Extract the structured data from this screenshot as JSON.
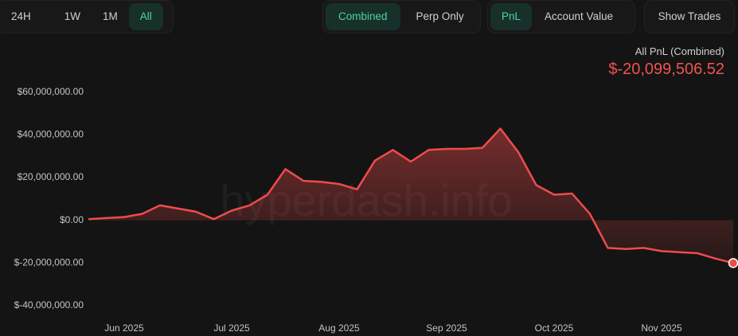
{
  "toolbar": {
    "timeframes": [
      "24H",
      "1W",
      "1M",
      "All"
    ],
    "modes": [
      "Combined",
      "Perp Only"
    ],
    "views": [
      "PnL",
      "Account Value"
    ],
    "show_trades": "Show Trades"
  },
  "summary": {
    "label": "All PnL (Combined)",
    "value": "$-20,099,506.52"
  },
  "watermark": "hyperdash.info",
  "chart_data": {
    "type": "area",
    "categories": [
      null,
      null,
      "Jun 2025",
      null,
      null,
      null,
      null,
      null,
      "Jul 2025",
      null,
      null,
      null,
      null,
      null,
      "Aug 2025",
      null,
      null,
      null,
      null,
      null,
      "Sep 2025",
      null,
      null,
      null,
      null,
      null,
      "Oct 2025",
      null,
      null,
      null,
      null,
      null,
      "Nov 2025",
      null,
      null,
      null,
      null
    ],
    "series": [
      {
        "name": "All PnL (Combined)",
        "color": "#ef4b4b",
        "values": [
          500000,
          1000000,
          1500000,
          3000000,
          7000000,
          5500000,
          4000000,
          500000,
          4500000,
          7000000,
          12000000,
          24000000,
          18500000,
          18000000,
          17000000,
          14500000,
          28000000,
          33000000,
          27500000,
          33000000,
          33500000,
          33500000,
          34000000,
          43000000,
          32000000,
          16500000,
          12000000,
          12500000,
          3000000,
          -13000000,
          -13500000,
          -13000000,
          -14500000,
          -15000000,
          -15500000,
          -18000000,
          -20099506.52
        ]
      }
    ],
    "ylim": [
      -48000000,
      66000000
    ],
    "yticks": [
      {
        "value": 60000000,
        "label": "$60,000,000.00"
      },
      {
        "value": 40000000,
        "label": "$40,000,000.00"
      },
      {
        "value": 20000000,
        "label": "$20,000,000.00"
      },
      {
        "value": 0,
        "label": "$0.00"
      },
      {
        "value": -20000000,
        "label": "$-20,000,000.00"
      },
      {
        "value": -40000000,
        "label": "$-40,000,000.00"
      }
    ],
    "grid": false
  }
}
